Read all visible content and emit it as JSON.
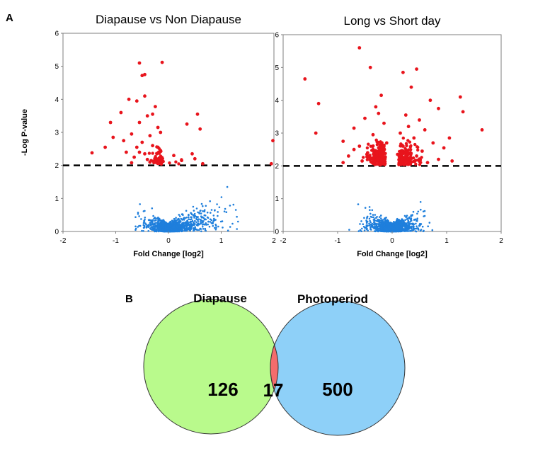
{
  "figure": {
    "panel_a": "A",
    "panel_b": "B"
  },
  "chart_data": [
    {
      "type": "scatter",
      "title": "Diapause vs Non Diapause",
      "xlabel": "Fold Change [log2]",
      "ylabel": "-Log  P-value",
      "xlim": [
        -2,
        2
      ],
      "ylim": [
        0,
        6
      ],
      "xticks": [
        "-2",
        "-1",
        "0",
        "1",
        "2"
      ],
      "yticks": [
        "0",
        "1",
        "2",
        "3",
        "4",
        "5",
        "6"
      ],
      "threshold": 2,
      "colors": {
        "significant": "#e8141c",
        "not_significant": "#1f7fdc",
        "threshold": "#000000"
      },
      "significant_points": [
        [
          -0.55,
          5.1
        ],
        [
          -0.12,
          5.12
        ],
        [
          -0.45,
          4.75
        ],
        [
          -0.5,
          4.72
        ],
        [
          -0.75,
          4.0
        ],
        [
          -0.45,
          4.1
        ],
        [
          -0.6,
          3.95
        ],
        [
          -0.25,
          3.78
        ],
        [
          -0.3,
          3.55
        ],
        [
          -0.4,
          3.5
        ],
        [
          -0.9,
          3.6
        ],
        [
          -1.1,
          3.3
        ],
        [
          -0.55,
          3.3
        ],
        [
          -0.2,
          3.15
        ],
        [
          0.55,
          3.55
        ],
        [
          0.35,
          3.25
        ],
        [
          0.6,
          3.1
        ],
        [
          -0.15,
          3.0
        ],
        [
          -0.7,
          2.95
        ],
        [
          -0.35,
          2.9
        ],
        [
          -1.05,
          2.85
        ],
        [
          -0.85,
          2.75
        ],
        [
          -0.5,
          2.7
        ],
        [
          -0.3,
          2.6
        ],
        [
          -0.6,
          2.55
        ],
        [
          -0.15,
          2.45
        ],
        [
          -1.2,
          2.55
        ],
        [
          -1.45,
          2.38
        ],
        [
          -0.8,
          2.4
        ],
        [
          -0.45,
          2.35
        ],
        [
          -0.65,
          2.25
        ],
        [
          -0.25,
          2.2
        ],
        [
          -0.35,
          2.1
        ],
        [
          -0.7,
          2.08
        ],
        [
          0.1,
          2.3
        ],
        [
          0.25,
          2.15
        ],
        [
          0.5,
          2.2
        ],
        [
          0.45,
          2.35
        ],
        [
          0.65,
          2.05
        ],
        [
          -0.1,
          2.12
        ],
        [
          1.98,
          2.75
        ],
        [
          1.95,
          2.05
        ],
        [
          -0.55,
          2.4
        ],
        [
          -0.4,
          2.18
        ],
        [
          -0.2,
          2.55
        ]
      ]
    },
    {
      "type": "scatter",
      "title": "Long vs Short day",
      "xlabel": "Fold Change [log2]",
      "ylabel": "",
      "xlim": [
        -2,
        2
      ],
      "ylim": [
        0,
        6
      ],
      "xticks": [
        "-2",
        "-1",
        "0",
        "1",
        "2"
      ],
      "yticks": [
        "0",
        "1",
        "2",
        "3",
        "4",
        "5",
        "6"
      ],
      "threshold": 2,
      "colors": {
        "significant": "#e8141c",
        "not_significant": "#1f7fdc",
        "threshold": "#000000"
      },
      "significant_points": [
        [
          -0.6,
          5.6
        ],
        [
          -0.4,
          5.0
        ],
        [
          0.45,
          4.95
        ],
        [
          0.2,
          4.85
        ],
        [
          -1.6,
          4.65
        ],
        [
          0.35,
          4.4
        ],
        [
          -1.35,
          3.9
        ],
        [
          1.25,
          4.1
        ],
        [
          0.7,
          4.0
        ],
        [
          -0.2,
          4.15
        ],
        [
          0.85,
          3.75
        ],
        [
          1.3,
          3.65
        ],
        [
          -1.4,
          3.0
        ],
        [
          1.65,
          3.1
        ],
        [
          -0.9,
          2.75
        ],
        [
          1.05,
          2.85
        ],
        [
          -0.3,
          3.8
        ],
        [
          -0.25,
          3.6
        ],
        [
          0.25,
          3.55
        ],
        [
          0.5,
          3.4
        ],
        [
          -0.5,
          3.45
        ],
        [
          0.3,
          3.2
        ],
        [
          0.6,
          3.1
        ],
        [
          -0.7,
          3.15
        ],
        [
          -0.15,
          3.3
        ],
        [
          0.15,
          3.0
        ],
        [
          -0.35,
          2.95
        ],
        [
          0.4,
          2.85
        ],
        [
          0.75,
          2.7
        ],
        [
          -0.6,
          2.6
        ],
        [
          0.95,
          2.55
        ],
        [
          -0.8,
          2.3
        ],
        [
          0.55,
          2.45
        ],
        [
          -0.45,
          2.4
        ],
        [
          0.1,
          2.35
        ],
        [
          -0.2,
          2.25
        ],
        [
          0.3,
          2.2
        ],
        [
          -0.55,
          2.15
        ],
        [
          0.65,
          2.1
        ],
        [
          -0.25,
          2.05
        ],
        [
          0.85,
          2.2
        ],
        [
          -0.9,
          2.1
        ],
        [
          1.1,
          2.15
        ],
        [
          -0.7,
          2.5
        ],
        [
          0.2,
          2.6
        ],
        [
          -0.1,
          2.7
        ],
        [
          0.45,
          2.3
        ],
        [
          -0.35,
          2.5
        ]
      ]
    },
    {
      "type": "venn",
      "sets": [
        {
          "label": "Diapause",
          "only_count": "126",
          "color": "#b9fa8c"
        },
        {
          "label": "Photoperiod",
          "only_count": "500",
          "color": "#8ed0f8"
        }
      ],
      "intersection_count": "17",
      "intersection_color": "#f46c6c"
    }
  ]
}
